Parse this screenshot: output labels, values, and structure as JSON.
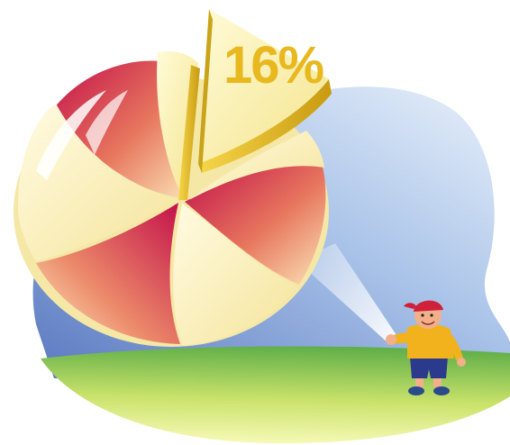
{
  "illustration": {
    "highlighted_slice_label": "16%",
    "highlighted_slice_value": 16,
    "colors": {
      "sky_light": "#e3eefa",
      "sky_dark": "#5f7fc4",
      "grass_light": "#f2f7a8",
      "grass_dark": "#6cb84a",
      "slice_red": "#c8124e",
      "slice_cream": "#fdf6c8",
      "slice_gold": "#e2b820",
      "label_gold": "#e8b81e",
      "beam": "#ffffff",
      "shirt": "#f2b21e",
      "shorts": "#2b3a8c",
      "cap": "#d0203a",
      "skin": "#f2b08a"
    },
    "elements": [
      "pie-chart-graphic",
      "exploded-slice",
      "projector-beam",
      "boy-figure",
      "grass-field",
      "sky-backdrop"
    ]
  }
}
